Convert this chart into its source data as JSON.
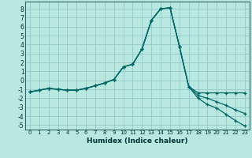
{
  "xlabel": "Humidex (Indice chaleur)",
  "bg_color": "#b8e8e0",
  "grid_color": "#99cccc",
  "line_color": "#006666",
  "xlim": [
    -0.5,
    23.5
  ],
  "ylim": [
    -5.5,
    8.8
  ],
  "yticks": [
    -5,
    -4,
    -3,
    -2,
    -1,
    0,
    1,
    2,
    3,
    4,
    5,
    6,
    7,
    8
  ],
  "xticks": [
    0,
    1,
    2,
    3,
    4,
    5,
    6,
    7,
    8,
    9,
    10,
    11,
    12,
    13,
    14,
    15,
    16,
    17,
    18,
    19,
    20,
    21,
    22,
    23
  ],
  "x": [
    0,
    1,
    2,
    3,
    4,
    5,
    6,
    7,
    8,
    9,
    10,
    11,
    12,
    13,
    14,
    15,
    16,
    17,
    18,
    19,
    20,
    21,
    22,
    23
  ],
  "y_top": [
    -1.3,
    -1.1,
    -0.9,
    -1.0,
    -1.1,
    -1.1,
    -0.9,
    -0.6,
    -0.3,
    0.1,
    1.5,
    1.8,
    3.5,
    6.7,
    8.0,
    8.1,
    3.8,
    -0.7,
    -1.4,
    -1.4,
    -1.4,
    -1.4,
    -1.4,
    -1.4
  ],
  "y_mid": [
    -1.3,
    -1.1,
    -0.9,
    -1.0,
    -1.1,
    -1.1,
    -0.9,
    -0.6,
    -0.3,
    0.1,
    1.5,
    1.8,
    3.5,
    6.7,
    8.0,
    8.1,
    3.8,
    -0.7,
    -1.7,
    -2.0,
    -2.4,
    -2.8,
    -3.3,
    -3.7
  ],
  "y_bot": [
    -1.3,
    -1.1,
    -0.9,
    -1.0,
    -1.1,
    -1.1,
    -0.9,
    -0.6,
    -0.3,
    0.1,
    1.5,
    1.8,
    3.5,
    6.7,
    8.0,
    8.1,
    3.8,
    -0.7,
    -2.0,
    -2.7,
    -3.1,
    -3.8,
    -4.5,
    -5.1
  ]
}
